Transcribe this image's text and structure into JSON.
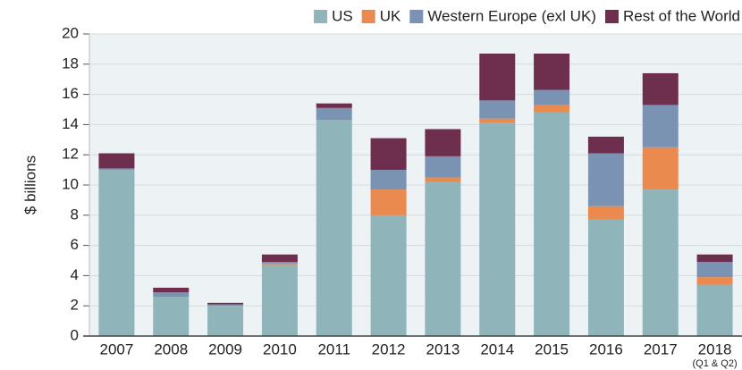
{
  "chart_data": {
    "type": "stacked_bar",
    "categories": [
      "2007",
      "2008",
      "2009",
      "2010",
      "2011",
      "2012",
      "2013",
      "2014",
      "2015",
      "2016",
      "2017",
      "2018"
    ],
    "category_note": "(Q1 & Q2)",
    "series": [
      {
        "name": "US",
        "color": "#8fb5ba",
        "values": [
          11.0,
          2.6,
          2.0,
          4.7,
          14.3,
          8.0,
          10.2,
          14.1,
          14.8,
          7.7,
          9.7,
          3.4
        ]
      },
      {
        "name": "UK",
        "color": "#eb8a4e",
        "values": [
          0,
          0,
          0,
          0.1,
          0,
          1.7,
          0.3,
          0.3,
          0.5,
          0.9,
          2.8,
          0.5
        ]
      },
      {
        "name": "Western Europe (exl UK)",
        "color": "#7b93b3",
        "values": [
          0.1,
          0.3,
          0.1,
          0.1,
          0.8,
          1.3,
          1.4,
          1.2,
          1.0,
          3.5,
          2.8,
          1.0
        ]
      },
      {
        "name": "Rest of the World",
        "color": "#6e2f4e",
        "values": [
          1.0,
          0.3,
          0.1,
          0.5,
          0.3,
          2.1,
          1.8,
          3.1,
          2.4,
          1.1,
          2.1,
          0.5
        ]
      }
    ],
    "y_label": "$ billions",
    "ylim": [
      0,
      20
    ],
    "yticks": [
      0,
      2,
      4,
      6,
      8,
      10,
      12,
      14,
      16,
      18,
      20
    ],
    "grid": true
  }
}
